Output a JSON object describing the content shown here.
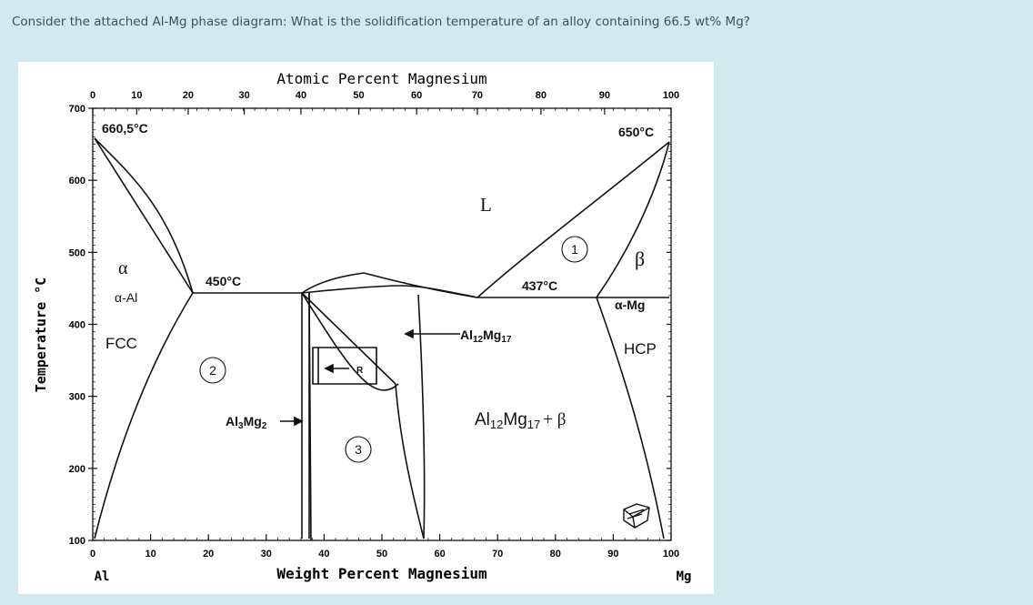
{
  "question": {
    "text": "Consider the attached Al-Mg phase diagram: What is the solidification temperature of an alloy containing 66.5 wt% Mg?"
  },
  "diagram": {
    "top_axis_title": "Atomic Percent Magnesium",
    "bottom_axis_title": "Weight Percent Magnesium",
    "y_axis_title": "Temperature °C",
    "left_element": "Al",
    "right_element": "Mg",
    "top_ticks": [
      "0",
      "10",
      "20",
      "30",
      "40",
      "50",
      "60",
      "70",
      "80",
      "90",
      "100"
    ],
    "bottom_ticks": [
      "0",
      "10",
      "20",
      "30",
      "40",
      "50",
      "60",
      "70",
      "80",
      "90",
      "100"
    ],
    "y_ticks": [
      "700",
      "600",
      "500",
      "400",
      "300",
      "200",
      "100"
    ],
    "labels": {
      "al_melting": "660,5°C",
      "mg_melting": "650°C",
      "liquid": "L",
      "alpha": "α",
      "alpha_name": "α-Al",
      "fcc": "FCC",
      "eutectic_left": "450°C",
      "eutectic_right": "437°C",
      "beta": "β",
      "beta_name": "α-Mg",
      "hcp": "HCP",
      "al3mg2_base": "Al",
      "al3mg2_sub1": "3",
      "al3mg2_mid": "Mg",
      "al3mg2_sub2": "2",
      "al12mg17_base": "Al",
      "al12mg17_sub1": "12",
      "al12mg17_mid": "Mg",
      "al12mg17_sub2": "17",
      "two_phase_base": "Al",
      "two_phase_sub1": "12",
      "two_phase_mid": "Mg",
      "two_phase_sub2": "17",
      "two_phase_tail": "+ β",
      "r_phase": "R",
      "circle1": "1",
      "circle2": "2",
      "circle3": "3"
    },
    "colors": {
      "line": "#111111",
      "background": "#ffffff"
    }
  }
}
